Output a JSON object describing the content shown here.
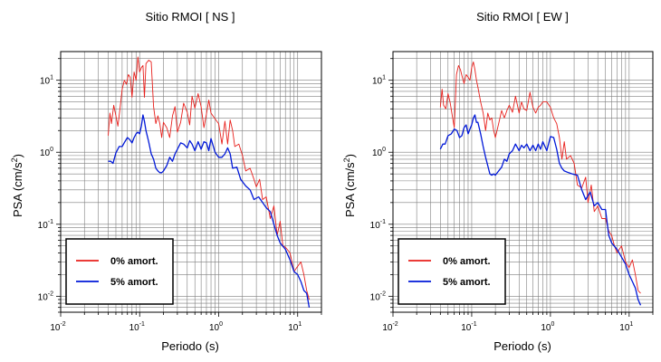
{
  "figure": {
    "background": "#ffffff",
    "series_colors": {
      "undamped": "#e8201c",
      "damped": "#0018d8"
    }
  },
  "chart_data": [
    {
      "type": "line",
      "title": "Sitio RMOI [ NS ]",
      "xlabel": "Periodo (s)",
      "ylabel_main": "PSA (cm/s",
      "ylabel_sup": "2",
      "ylabel_close": ")",
      "x_scale": "log",
      "y_scale": "log",
      "xlim": [
        0.01,
        20
      ],
      "ylim": [
        0.006,
        25
      ],
      "grid": true,
      "legend_position": "bottom-left",
      "x_ticks": [
        {
          "value": 0.01,
          "base": "10",
          "exp": "-2"
        },
        {
          "value": 0.1,
          "base": "10",
          "exp": "-1"
        },
        {
          "value": 1,
          "base": "10",
          "exp": "0"
        },
        {
          "value": 10,
          "base": "10",
          "exp": "1"
        }
      ],
      "y_ticks": [
        {
          "value": 0.01,
          "base": "10",
          "exp": "-2"
        },
        {
          "value": 0.1,
          "base": "10",
          "exp": "-1"
        },
        {
          "value": 1,
          "base": "10",
          "exp": "0"
        },
        {
          "value": 10,
          "base": "10",
          "exp": "1"
        }
      ],
      "series": [
        {
          "name": "0% amort.",
          "color": "#e8201c",
          "x": [
            0.04,
            0.042,
            0.044,
            0.047,
            0.05,
            0.053,
            0.056,
            0.06,
            0.064,
            0.068,
            0.072,
            0.076,
            0.08,
            0.085,
            0.09,
            0.095,
            0.1,
            0.105,
            0.11,
            0.115,
            0.12,
            0.13,
            0.14,
            0.15,
            0.16,
            0.17,
            0.18,
            0.19,
            0.2,
            0.22,
            0.24,
            0.26,
            0.28,
            0.3,
            0.33,
            0.36,
            0.4,
            0.43,
            0.46,
            0.5,
            0.55,
            0.6,
            0.65,
            0.7,
            0.75,
            0.8,
            0.9,
            1.0,
            1.1,
            1.2,
            1.3,
            1.4,
            1.5,
            1.6,
            1.8,
            2.0,
            2.2,
            2.5,
            2.8,
            3.0,
            3.3,
            3.6,
            4.0,
            4.5,
            5.0,
            5.5,
            6.0,
            6.5,
            7.0,
            8.0,
            9.0,
            10.0,
            11.0,
            12.0,
            13.0,
            14.0
          ],
          "y": [
            1.7,
            3.5,
            2.5,
            4.5,
            3.2,
            2.3,
            3.8,
            7.5,
            10,
            8.8,
            12,
            11,
            5.8,
            13,
            10,
            21,
            13,
            15,
            16,
            5.8,
            17,
            19,
            18,
            4.3,
            2.5,
            3.2,
            2.5,
            1.6,
            2.6,
            2.2,
            1.6,
            3.2,
            4.3,
            1.9,
            2.6,
            4.8,
            3.6,
            2.4,
            6.0,
            4.1,
            6.5,
            4.3,
            2.2,
            3.4,
            5.3,
            3.5,
            2.9,
            2.5,
            1.3,
            2.7,
            1.3,
            2.8,
            2.0,
            1.2,
            1.3,
            0.9,
            0.55,
            0.6,
            0.42,
            0.33,
            0.42,
            0.22,
            0.24,
            0.12,
            0.18,
            0.07,
            0.11,
            0.05,
            0.048,
            0.04,
            0.022,
            0.026,
            0.03,
            0.02,
            0.012,
            0.009
          ]
        },
        {
          "name": "5% amort.",
          "color": "#0018d8",
          "x": [
            0.04,
            0.043,
            0.046,
            0.05,
            0.055,
            0.06,
            0.065,
            0.07,
            0.075,
            0.08,
            0.085,
            0.09,
            0.095,
            0.1,
            0.105,
            0.11,
            0.115,
            0.12,
            0.13,
            0.14,
            0.15,
            0.16,
            0.17,
            0.18,
            0.19,
            0.2,
            0.22,
            0.24,
            0.26,
            0.28,
            0.3,
            0.33,
            0.36,
            0.4,
            0.43,
            0.46,
            0.5,
            0.55,
            0.6,
            0.65,
            0.7,
            0.75,
            0.8,
            0.9,
            1.0,
            1.1,
            1.2,
            1.3,
            1.4,
            1.5,
            1.7,
            1.9,
            2.2,
            2.5,
            2.8,
            3.2,
            3.6,
            4.0,
            4.5,
            5.0,
            5.5,
            6.0,
            7.0,
            8.0,
            9.0,
            10.0,
            11.0,
            12.0,
            13.0,
            14.0
          ],
          "y": [
            0.75,
            0.75,
            0.7,
            0.98,
            1.2,
            1.2,
            1.4,
            1.6,
            1.5,
            1.35,
            1.6,
            1.8,
            1.9,
            1.8,
            2.3,
            3.3,
            2.7,
            2.0,
            1.4,
            0.95,
            0.8,
            0.6,
            0.55,
            0.52,
            0.52,
            0.55,
            0.65,
            0.85,
            0.75,
            0.95,
            1.1,
            1.35,
            1.3,
            1.15,
            1.45,
            1.3,
            1.05,
            1.4,
            1.1,
            1.4,
            1.35,
            1.05,
            1.55,
            1.0,
            0.85,
            0.85,
            0.95,
            1.15,
            0.95,
            0.6,
            0.62,
            0.42,
            0.34,
            0.3,
            0.22,
            0.24,
            0.2,
            0.17,
            0.15,
            0.1,
            0.07,
            0.055,
            0.045,
            0.032,
            0.022,
            0.02,
            0.016,
            0.012,
            0.011,
            0.007
          ]
        }
      ]
    },
    {
      "type": "line",
      "title": "Sitio RMOI [ EW ]",
      "xlabel": "Periodo (s)",
      "ylabel_main": "PSA (cm/s",
      "ylabel_sup": "2",
      "ylabel_close": ")",
      "x_scale": "log",
      "y_scale": "log",
      "xlim": [
        0.01,
        20
      ],
      "ylim": [
        0.006,
        25
      ],
      "grid": true,
      "legend_position": "bottom-left",
      "x_ticks": [
        {
          "value": 0.01,
          "base": "10",
          "exp": "-2"
        },
        {
          "value": 0.1,
          "base": "10",
          "exp": "-1"
        },
        {
          "value": 1,
          "base": "10",
          "exp": "0"
        },
        {
          "value": 10,
          "base": "10",
          "exp": "1"
        }
      ],
      "y_ticks": [
        {
          "value": 0.01,
          "base": "10",
          "exp": "-2"
        },
        {
          "value": 0.1,
          "base": "10",
          "exp": "-1"
        },
        {
          "value": 1,
          "base": "10",
          "exp": "0"
        },
        {
          "value": 10,
          "base": "10",
          "exp": "1"
        }
      ],
      "series": [
        {
          "name": "0% amort.",
          "color": "#e8201c",
          "x": [
            0.04,
            0.042,
            0.044,
            0.047,
            0.05,
            0.053,
            0.056,
            0.06,
            0.064,
            0.068,
            0.072,
            0.076,
            0.08,
            0.085,
            0.09,
            0.095,
            0.1,
            0.105,
            0.11,
            0.115,
            0.12,
            0.13,
            0.14,
            0.15,
            0.16,
            0.17,
            0.18,
            0.19,
            0.2,
            0.22,
            0.24,
            0.26,
            0.28,
            0.3,
            0.33,
            0.36,
            0.4,
            0.43,
            0.46,
            0.5,
            0.55,
            0.6,
            0.65,
            0.7,
            0.75,
            0.8,
            0.9,
            1.0,
            1.1,
            1.2,
            1.3,
            1.4,
            1.5,
            1.6,
            1.8,
            2.0,
            2.2,
            2.5,
            2.8,
            3.0,
            3.3,
            3.6,
            4.0,
            4.5,
            5.0,
            5.5,
            6.0,
            6.5,
            7.0,
            8.0,
            9.0,
            10.0,
            11.0,
            12.0,
            13.0,
            14.0
          ],
          "y": [
            4.2,
            7.5,
            4.5,
            4.0,
            6.5,
            5.0,
            3.5,
            2.2,
            12,
            16,
            14,
            11,
            9,
            12,
            11,
            10,
            15,
            18,
            14,
            10,
            8.0,
            5.0,
            3.5,
            2.0,
            3.5,
            2.8,
            3.0,
            2.0,
            1.6,
            2.5,
            3.8,
            3.0,
            3.8,
            4.5,
            3.6,
            6.0,
            3.5,
            5.0,
            4.0,
            3.8,
            6.8,
            4.2,
            3.5,
            4.2,
            4.5,
            5.0,
            5.0,
            4.2,
            3.0,
            2.5,
            1.6,
            0.8,
            1.4,
            0.8,
            0.9,
            0.7,
            0.35,
            0.32,
            0.45,
            0.2,
            0.35,
            0.15,
            0.18,
            0.12,
            0.12,
            0.08,
            0.07,
            0.05,
            0.04,
            0.05,
            0.03,
            0.025,
            0.032,
            0.02,
            0.012,
            0.011
          ]
        },
        {
          "name": "5% amort.",
          "color": "#0018d8",
          "x": [
            0.04,
            0.043,
            0.046,
            0.05,
            0.055,
            0.06,
            0.065,
            0.07,
            0.075,
            0.08,
            0.085,
            0.09,
            0.095,
            0.1,
            0.105,
            0.11,
            0.115,
            0.12,
            0.13,
            0.14,
            0.15,
            0.16,
            0.17,
            0.18,
            0.19,
            0.2,
            0.22,
            0.24,
            0.26,
            0.28,
            0.3,
            0.33,
            0.36,
            0.4,
            0.43,
            0.46,
            0.5,
            0.55,
            0.6,
            0.65,
            0.7,
            0.75,
            0.8,
            0.9,
            1.0,
            1.1,
            1.2,
            1.3,
            1.4,
            1.5,
            1.7,
            1.9,
            2.2,
            2.5,
            2.8,
            3.2,
            3.6,
            4.0,
            4.5,
            5.0,
            5.5,
            6.0,
            7.0,
            8.0,
            9.0,
            10.0,
            11.0,
            12.0,
            13.0,
            14.0
          ],
          "y": [
            1.1,
            1.3,
            1.3,
            1.7,
            1.8,
            2.1,
            2.0,
            1.6,
            1.7,
            2.2,
            2.4,
            1.8,
            2.1,
            2.4,
            3.0,
            3.3,
            2.6,
            2.6,
            1.8,
            1.2,
            0.85,
            0.65,
            0.5,
            0.48,
            0.5,
            0.48,
            0.55,
            0.62,
            0.8,
            0.75,
            0.95,
            1.05,
            1.3,
            1.05,
            1.25,
            1.15,
            1.3,
            1.05,
            1.25,
            1.05,
            1.3,
            1.1,
            1.4,
            1.05,
            1.65,
            1.6,
            1.1,
            0.7,
            0.6,
            0.55,
            0.52,
            0.5,
            0.48,
            0.3,
            0.22,
            0.28,
            0.18,
            0.2,
            0.16,
            0.16,
            0.07,
            0.055,
            0.045,
            0.035,
            0.028,
            0.02,
            0.016,
            0.013,
            0.009,
            0.0075
          ]
        }
      ]
    }
  ]
}
